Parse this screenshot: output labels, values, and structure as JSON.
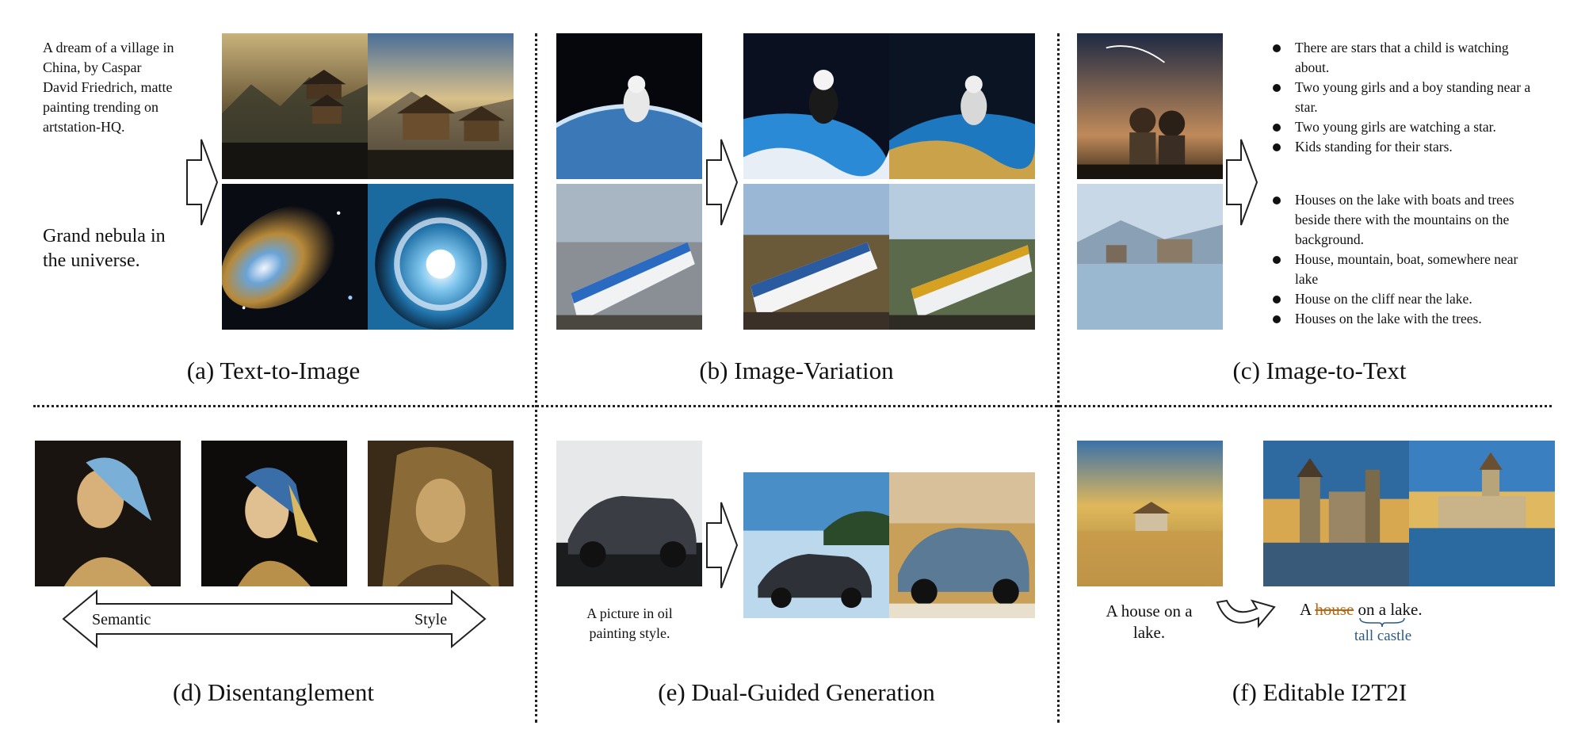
{
  "panels": {
    "a": {
      "caption": "(a) Text-to-Image",
      "prompt1": "A dream of a village in China, by Caspar David Friedrich, matte painting trending on artstation-HQ.",
      "prompt2": "Grand nebula in the universe."
    },
    "b": {
      "caption": "(b) Image-Variation"
    },
    "c": {
      "caption": "(c) Image-to-Text",
      "captions1": [
        "There are stars that a child is watching about.",
        "Two young girls and a boy standing near a star.",
        "Two young girls are watching a star.",
        "Kids standing for their stars."
      ],
      "captions2": [
        "Houses on the lake with boats and trees beside there with the mountains on the background.",
        "House, mountain, boat, somewhere near lake",
        "House on the cliff near the lake.",
        "Houses on the lake with the trees."
      ]
    },
    "d": {
      "caption": "(d) Disentanglement",
      "left_label": "Semantic",
      "right_label": "Style"
    },
    "e": {
      "caption": "(e) Dual-Guided Generation",
      "prompt": "A picture in oil painting style."
    },
    "f": {
      "caption": "(f) Editable I2T2I",
      "source_text": "A house on a lake.",
      "edit_prefix": "A",
      "edit_removed": "house",
      "edit_suffix": "on a lake.",
      "edit_replacement": "tall castle"
    }
  },
  "colors": {
    "divider": "#222222",
    "edit_removed": "#b06a1a",
    "edit_replacement": "#2a5a88"
  }
}
